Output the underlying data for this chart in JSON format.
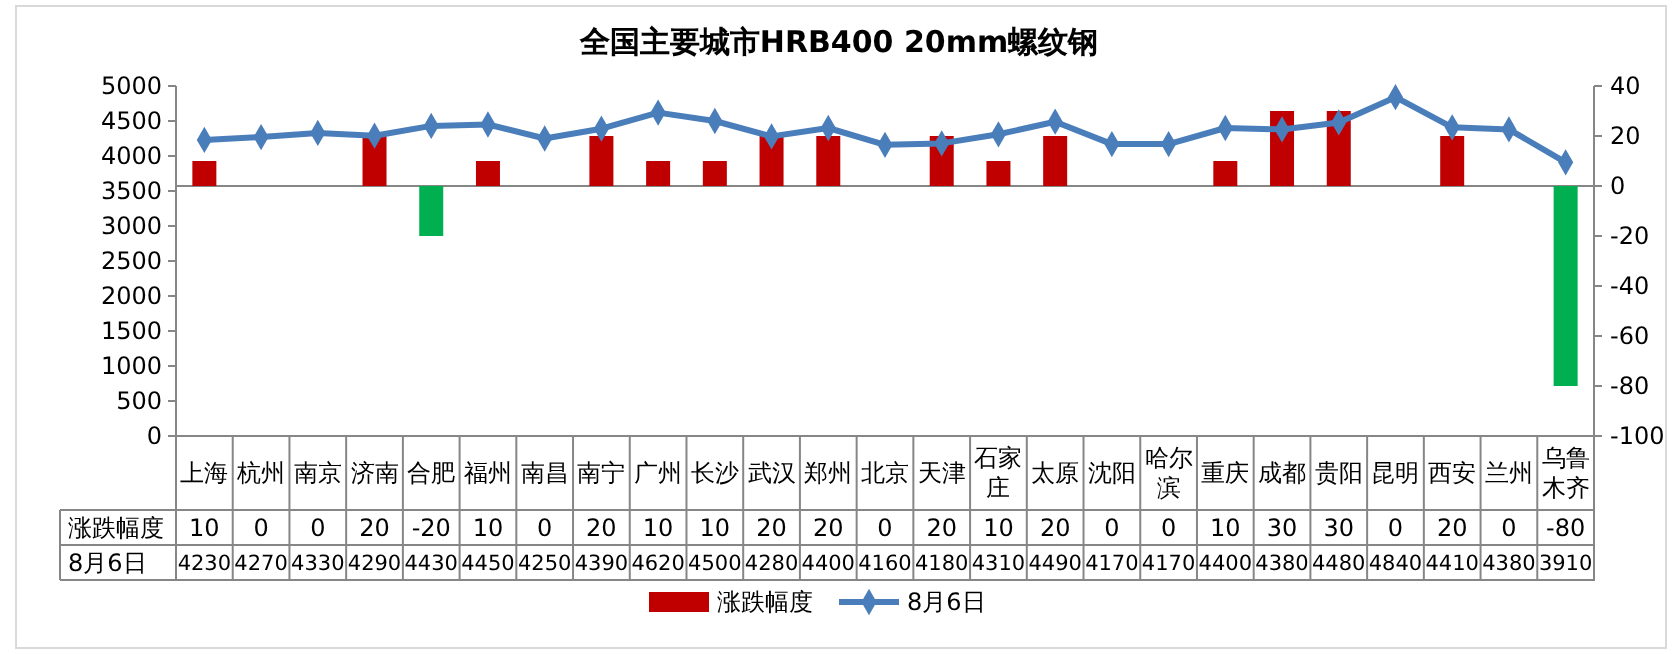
{
  "chart_data": {
    "type": "bar",
    "title": "全国主要城市HRB400 20mm螺纹钢",
    "categories": [
      "上海",
      "杭州",
      "南京",
      "济南",
      "合肥",
      "福州",
      "南昌",
      "南宁",
      "广州",
      "长沙",
      "武汉",
      "郑州",
      "北京",
      "天津",
      "石家庄",
      "太原",
      "沈阳",
      "哈尔滨",
      "重庆",
      "成都",
      "贵阳",
      "昆明",
      "西安",
      "兰州",
      "乌鲁木齐"
    ],
    "series": [
      {
        "name": "涨跌幅度",
        "axis": "y2",
        "color": "#c00000",
        "colors": [
          "#c00000",
          "#c00000",
          "#c00000",
          "#c00000",
          "#00b050",
          "#c00000",
          "#c00000",
          "#c00000",
          "#c00000",
          "#c00000",
          "#c00000",
          "#c00000",
          "#c00000",
          "#c00000",
          "#c00000",
          "#c00000",
          "#c00000",
          "#c00000",
          "#c00000",
          "#c00000",
          "#c00000",
          "#c00000",
          "#c00000",
          "#c00000",
          "#00b050"
        ],
        "values": [
          10,
          0,
          0,
          20,
          -20,
          10,
          0,
          20,
          10,
          10,
          20,
          20,
          0,
          20,
          10,
          20,
          0,
          0,
          10,
          30,
          30,
          0,
          20,
          0,
          -80
        ]
      },
      {
        "name": "8月6日",
        "type": "line",
        "color": "#4a7ebb",
        "values": [
          4230,
          4270,
          4330,
          4290,
          4430,
          4450,
          4250,
          4390,
          4620,
          4500,
          4280,
          4400,
          4160,
          4180,
          4310,
          4490,
          4170,
          4170,
          4400,
          4380,
          4480,
          4840,
          4410,
          4380,
          3910
        ]
      }
    ],
    "ylim": [
      0,
      5000
    ],
    "yticks": [
      0,
      500,
      1000,
      1500,
      2000,
      2500,
      3000,
      3500,
      4000,
      4500,
      5000
    ],
    "y2lim": [
      -100,
      40
    ],
    "y2ticks": [
      -100,
      -80,
      -60,
      -40,
      -20,
      0,
      20,
      40
    ],
    "marker": "diamond",
    "line_style": "solid",
    "legend": "bottom",
    "data_labels": true
  }
}
